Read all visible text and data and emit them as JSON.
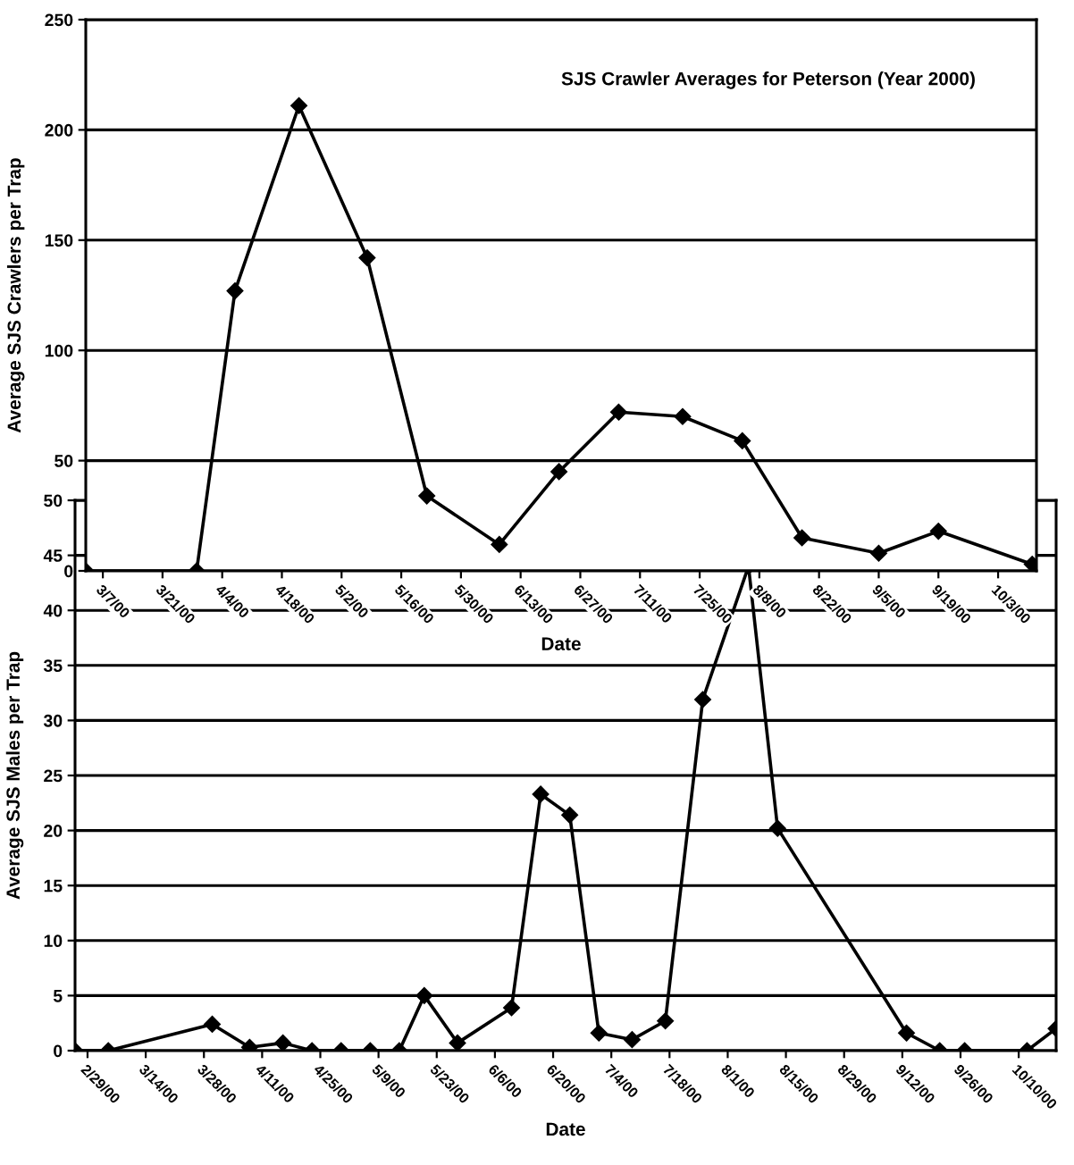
{
  "chart_data": [
    {
      "type": "line",
      "title": "SJS Crawler Averages for Peterson (Year 2000)",
      "xlabel": "Date",
      "ylabel": "Average SJS Crawlers per Trap",
      "x": [
        "2000-03-03",
        "2000-03-29",
        "2000-04-07",
        "2000-04-22",
        "2000-05-08",
        "2000-05-22",
        "2000-06-08",
        "2000-06-22",
        "2000-07-06",
        "2000-07-21",
        "2000-08-04",
        "2000-08-18",
        "2000-09-05",
        "2000-09-19",
        "2000-10-11"
      ],
      "series": [
        {
          "color": "#000000",
          "values": [
            0,
            0,
            127,
            211,
            142,
            34,
            12,
            45,
            72,
            70,
            59,
            15,
            8,
            18,
            3
          ]
        }
      ],
      "xlim": [
        "2000-03-03",
        "2000-10-12"
      ],
      "xticks": [
        {
          "value": "2000-03-07",
          "label": "3/7/00"
        },
        {
          "value": "2000-03-21",
          "label": "3/21/00"
        },
        {
          "value": "2000-04-04",
          "label": "4/4/00"
        },
        {
          "value": "2000-04-18",
          "label": "4/18/00"
        },
        {
          "value": "2000-05-02",
          "label": "5/2/00"
        },
        {
          "value": "2000-05-16",
          "label": "5/16/00"
        },
        {
          "value": "2000-05-30",
          "label": "5/30/00"
        },
        {
          "value": "2000-06-13",
          "label": "6/13/00"
        },
        {
          "value": "2000-06-27",
          "label": "6/27/00"
        },
        {
          "value": "2000-07-11",
          "label": "7/11/00"
        },
        {
          "value": "2000-07-25",
          "label": "7/25/00"
        },
        {
          "value": "2000-08-08",
          "label": "8/8/00"
        },
        {
          "value": "2000-08-22",
          "label": "8/22/00"
        },
        {
          "value": "2000-09-05",
          "label": "9/5/00"
        },
        {
          "value": "2000-09-19",
          "label": "9/19/00"
        },
        {
          "value": "2000-10-03",
          "label": "10/3/00"
        }
      ],
      "ylim": [
        0,
        250
      ],
      "yticks": [
        0,
        50,
        100,
        150,
        200,
        250
      ],
      "grid": "y",
      "marker": "diamond",
      "line_style": "solid"
    },
    {
      "type": "line",
      "xlabel": "Date",
      "ylabel": "Average SJS Males per Trap",
      "x": [
        "2000-02-26",
        "2000-03-05",
        "2000-03-30",
        "2000-04-08",
        "2000-04-16",
        "2000-04-23",
        "2000-04-30",
        "2000-05-07",
        "2000-05-14",
        "2000-05-20",
        "2000-05-28",
        "2000-06-10",
        "2000-06-17",
        "2000-06-24",
        "2000-07-01",
        "2000-07-09",
        "2000-07-17",
        "2000-07-26",
        "2000-08-06",
        "2000-08-13",
        "2000-09-13",
        "2000-09-21",
        "2000-09-27",
        "2000-10-12",
        "2000-10-19"
      ],
      "series": [
        {
          "color": "#000000",
          "values": [
            0,
            0,
            2.4,
            0.3,
            0.7,
            0,
            0,
            0,
            0,
            5,
            0.7,
            3.9,
            23.3,
            21.4,
            1.6,
            1,
            2.7,
            31.9,
            44,
            20.2,
            1.6,
            0,
            0,
            0,
            2
          ]
        }
      ],
      "xlim": [
        "2000-02-26",
        "2000-10-19"
      ],
      "xticks": [
        {
          "value": "2000-02-29",
          "label": "2/29/00"
        },
        {
          "value": "2000-03-14",
          "label": "3/14/00"
        },
        {
          "value": "2000-03-28",
          "label": "3/28/00"
        },
        {
          "value": "2000-04-11",
          "label": "4/11/00"
        },
        {
          "value": "2000-04-25",
          "label": "4/25/00"
        },
        {
          "value": "2000-05-09",
          "label": "5/9/00"
        },
        {
          "value": "2000-05-23",
          "label": "5/23/00"
        },
        {
          "value": "2000-06-06",
          "label": "6/6/00"
        },
        {
          "value": "2000-06-20",
          "label": "6/20/00"
        },
        {
          "value": "2000-07-04",
          "label": "7/4/00"
        },
        {
          "value": "2000-07-18",
          "label": "7/18/00"
        },
        {
          "value": "2000-08-01",
          "label": "8/1/00"
        },
        {
          "value": "2000-08-15",
          "label": "8/15/00"
        },
        {
          "value": "2000-08-29",
          "label": "8/29/00"
        },
        {
          "value": "2000-09-12",
          "label": "9/12/00"
        },
        {
          "value": "2000-09-26",
          "label": "9/26/00"
        },
        {
          "value": "2000-10-10",
          "label": "10/10/00"
        }
      ],
      "ylim": [
        0,
        50
      ],
      "yticks": [
        0,
        5,
        10,
        15,
        20,
        25,
        30,
        35,
        40,
        45,
        50
      ],
      "grid": "y",
      "marker": "diamond",
      "line_style": "solid"
    }
  ]
}
